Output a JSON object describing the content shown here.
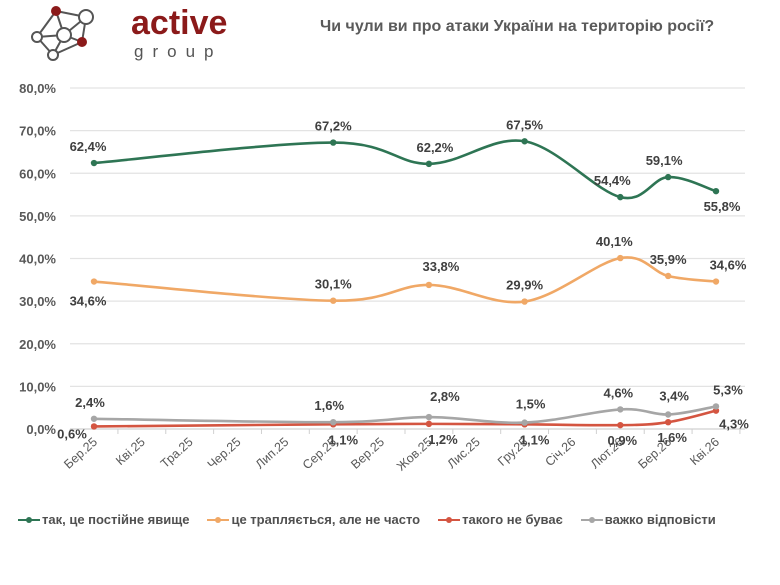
{
  "logo": {
    "word": "active",
    "sub": "group"
  },
  "chart_data": {
    "type": "line",
    "title": "Чи чули ви про атаки України на територію росії?",
    "xlabel": "",
    "ylabel": "",
    "ylim": [
      0,
      80
    ],
    "yticks": [
      "0,0%",
      "10,0%",
      "20,0%",
      "30,0%",
      "40,0%",
      "50,0%",
      "60,0%",
      "70,0%",
      "80,0%"
    ],
    "ytick_values": [
      0,
      10,
      20,
      30,
      40,
      50,
      60,
      70,
      80
    ],
    "grid": true,
    "legend_position": "bottom",
    "categories": [
      "Бер.25",
      "Кві.25",
      "Тра.25",
      "Чер.25",
      "Лип.25",
      "Сер.25",
      "Вер.25",
      "Жов.25",
      "Лис.25",
      "Гру.25",
      "Січ.26",
      "Лют.26",
      "Бер.26",
      "Кві.26"
    ],
    "point_indices": [
      0,
      5,
      7,
      9,
      11,
      12,
      13
    ],
    "series": [
      {
        "name": "так, це постійне явище",
        "color": "#2e7554",
        "values": [
          62.4,
          67.2,
          62.2,
          67.5,
          54.4,
          59.1,
          55.8
        ],
        "labels": [
          "62,4%",
          "67,2%",
          "62,2%",
          "67,5%",
          "54,4%",
          "59,1%",
          "55,8%"
        ]
      },
      {
        "name": "це трапляється, але не часто",
        "color": "#f0a866",
        "values": [
          34.6,
          30.1,
          33.8,
          29.9,
          40.1,
          35.9,
          34.6
        ],
        "labels": [
          "34,6%",
          "30,1%",
          "33,8%",
          "29,9%",
          "40,1%",
          "35,9%",
          "34,6%"
        ]
      },
      {
        "name": "такого не буває",
        "color": "#d45541",
        "values": [
          0.6,
          1.1,
          1.2,
          1.1,
          0.9,
          1.6,
          4.3
        ],
        "labels": [
          "0,6%",
          "1,1%",
          "1,2%",
          "1,1%",
          "0,9%",
          "1,6%",
          "4,3%"
        ]
      },
      {
        "name": "важко відповісти",
        "color": "#a6a6a6",
        "values": [
          2.4,
          1.6,
          2.8,
          1.5,
          4.6,
          3.4,
          5.3
        ],
        "labels": [
          "2,4%",
          "1,6%",
          "2,8%",
          "1,5%",
          "4,6%",
          "3,4%",
          "5,3%"
        ]
      }
    ]
  }
}
